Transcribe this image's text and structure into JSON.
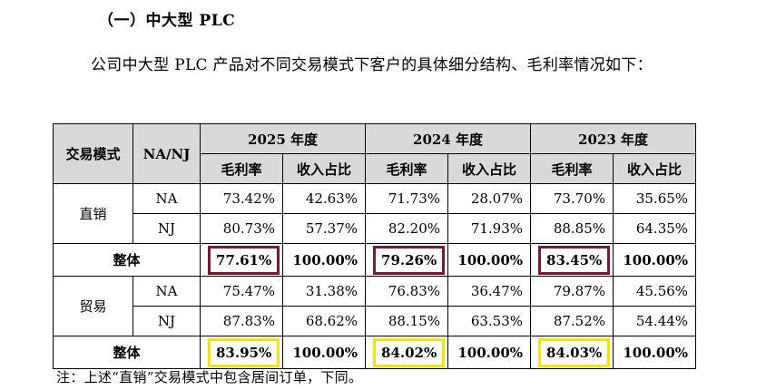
{
  "section_title": "（一）中大型 PLC",
  "paragraph": "公司中大型 PLC 产品对不同交易模式下客户的具体细分结构、毛利率情况如下：",
  "table": {
    "header": {
      "mode": "交易模式",
      "na_nj": "NA/NJ",
      "years": [
        "2025 年度",
        "2024 年度",
        "2023 年度"
      ],
      "gross_margin": "毛利率",
      "revenue_share": "收入占比"
    },
    "direct": {
      "label": "直销",
      "na": {
        "label": "NA",
        "values": [
          "73.42%",
          "42.63%",
          "71.73%",
          "28.07%",
          "73.70%",
          "35.65%"
        ]
      },
      "nj": {
        "label": "NJ",
        "values": [
          "80.73%",
          "57.37%",
          "82.20%",
          "71.93%",
          "88.85%",
          "64.35%"
        ]
      },
      "overall": {
        "label": "整体",
        "values": [
          "77.61%",
          "100.00%",
          "79.26%",
          "100.00%",
          "83.45%",
          "100.00%"
        ]
      }
    },
    "trade": {
      "label": "贸易",
      "na": {
        "label": "NA",
        "values": [
          "75.47%",
          "31.38%",
          "76.83%",
          "36.47%",
          "79.87%",
          "45.56%"
        ]
      },
      "nj": {
        "label": "NJ",
        "values": [
          "87.83%",
          "68.62%",
          "88.15%",
          "63.53%",
          "87.52%",
          "54.44%"
        ]
      },
      "overall": {
        "label": "整体",
        "values": [
          "83.95%",
          "100.00%",
          "84.02%",
          "100.00%",
          "84.03%",
          "100.00%"
        ]
      }
    }
  },
  "note": "注：上述“直销”交易模式中包含居间订单，下同。",
  "colors": {
    "header_bg": "#d9d9d9",
    "highlight_red": "#7a1a2a",
    "highlight_yellow": "#f5e600"
  }
}
